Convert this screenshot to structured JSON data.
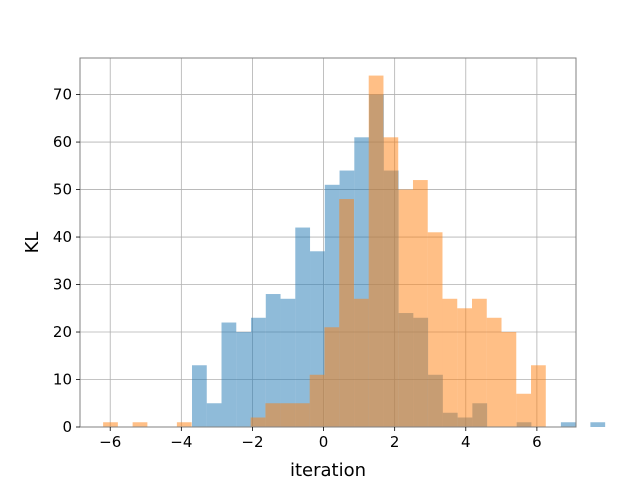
{
  "chart_data": {
    "type": "bar",
    "xlabel": "iteration",
    "ylabel": "KL",
    "xlim": [
      -6.85,
      7.1
    ],
    "ylim": [
      0,
      77.7
    ],
    "xticks": [
      -6,
      -4,
      -2,
      0,
      2,
      4,
      6
    ],
    "xtick_labels": [
      "−6",
      "−4",
      "−2",
      "0",
      "2",
      "4",
      "6"
    ],
    "yticks": [
      0,
      10,
      20,
      30,
      40,
      50,
      60,
      70
    ],
    "ytick_labels": [
      "0",
      "10",
      "20",
      "30",
      "40",
      "50",
      "60",
      "70"
    ],
    "grid": true,
    "legend": "none",
    "series": [
      {
        "color": "#1f77b4",
        "opacity": 0.5,
        "bin_start": -3.7,
        "bin_width": 0.415,
        "values": [
          13,
          5,
          22,
          20,
          23,
          28,
          27,
          42,
          37,
          51,
          54,
          61,
          70,
          54,
          24,
          23,
          11,
          3,
          2,
          5,
          0,
          0,
          1,
          0,
          0,
          1,
          0,
          1
        ]
      },
      {
        "color": "#ff7f0e",
        "opacity": 0.5,
        "bin_start": -6.2,
        "bin_width": 0.415,
        "values": [
          1,
          0,
          1,
          0,
          0,
          1,
          0,
          0,
          0,
          0,
          2,
          5,
          5,
          5,
          11,
          21,
          48,
          27,
          74,
          61,
          50,
          52,
          41,
          27,
          25,
          27,
          23,
          20,
          7,
          13
        ]
      }
    ]
  }
}
